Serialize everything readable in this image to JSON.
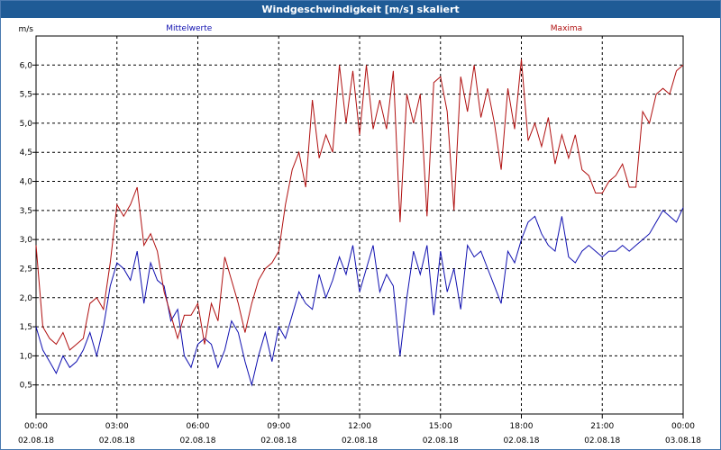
{
  "chart_data": {
    "type": "line",
    "title": "Windgeschwindigkeit [m/s] skaliert",
    "ylabel": "m/s",
    "ylim": [
      0,
      6.5
    ],
    "xlim": [
      0,
      24
    ],
    "grid": true,
    "y_ticks": [
      0.5,
      1.0,
      1.5,
      2.0,
      2.5,
      3.0,
      3.5,
      4.0,
      4.5,
      5.0,
      5.5,
      6.0
    ],
    "y_tick_labels": [
      "0,5",
      "1,0",
      "1,5",
      "2,0",
      "2,5",
      "3,0",
      "3,5",
      "4,0",
      "4,5",
      "5,0",
      "5,5",
      "6,0"
    ],
    "x_ticks": [
      0,
      3,
      6,
      9,
      12,
      15,
      18,
      21,
      24
    ],
    "x_tick_labels": [
      [
        "00:00",
        "02.08.18"
      ],
      [
        "03:00",
        "02.08.18"
      ],
      [
        "06:00",
        "02.08.18"
      ],
      [
        "09:00",
        "02.08.18"
      ],
      [
        "12:00",
        "02.08.18"
      ],
      [
        "15:00",
        "02.08.18"
      ],
      [
        "18:00",
        "02.08.18"
      ],
      [
        "21:00",
        "02.08.18"
      ],
      [
        "00:00",
        "03.08.18"
      ]
    ],
    "series": [
      {
        "name": "Mittelwerte",
        "color": "#1010b0",
        "x": [
          0,
          0.25,
          0.5,
          0.75,
          1,
          1.25,
          1.5,
          1.75,
          2,
          2.25,
          2.5,
          2.75,
          3,
          3.25,
          3.5,
          3.75,
          4,
          4.25,
          4.5,
          4.75,
          5,
          5.25,
          5.5,
          5.75,
          6,
          6.25,
          6.5,
          6.75,
          7,
          7.25,
          7.5,
          7.75,
          8,
          8.25,
          8.5,
          8.75,
          9,
          9.25,
          9.5,
          9.75,
          10,
          10.25,
          10.5,
          10.75,
          11,
          11.25,
          11.5,
          11.75,
          12,
          12.25,
          12.5,
          12.75,
          13,
          13.25,
          13.5,
          13.75,
          14,
          14.25,
          14.5,
          14.75,
          15,
          15.25,
          15.5,
          15.75,
          16,
          16.25,
          16.5,
          16.75,
          17,
          17.25,
          17.5,
          17.75,
          18,
          18.25,
          18.5,
          18.75,
          19,
          19.25,
          19.5,
          19.75,
          20,
          20.25,
          20.5,
          20.75,
          21,
          21.25,
          21.5,
          21.75,
          22,
          22.25,
          22.5,
          22.75,
          23,
          23.25,
          23.5,
          23.75,
          24
        ],
        "values": [
          1.5,
          1.1,
          0.9,
          0.7,
          1.0,
          0.8,
          0.9,
          1.1,
          1.4,
          1.0,
          1.5,
          2.2,
          2.6,
          2.5,
          2.3,
          2.8,
          1.9,
          2.6,
          2.3,
          2.2,
          1.6,
          1.8,
          1.0,
          0.8,
          1.2,
          1.3,
          1.2,
          0.8,
          1.1,
          1.6,
          1.4,
          0.9,
          0.5,
          1.0,
          1.4,
          0.9,
          1.5,
          1.3,
          1.7,
          2.1,
          1.9,
          1.8,
          2.4,
          2.0,
          2.3,
          2.7,
          2.4,
          2.9,
          2.1,
          2.5,
          2.9,
          2.1,
          2.4,
          2.2,
          1.0,
          2.0,
          2.8,
          2.4,
          2.9,
          1.7,
          2.8,
          2.1,
          2.5,
          1.8,
          2.9,
          2.7,
          2.8,
          2.5,
          2.2,
          1.9,
          2.8,
          2.6,
          3.0,
          3.3,
          3.4,
          3.1,
          2.9,
          2.8,
          3.4,
          2.7,
          2.6,
          2.8,
          2.9,
          2.8,
          2.7,
          2.8,
          2.8,
          2.9,
          2.8,
          2.9,
          3.0,
          3.1,
          3.3,
          3.5,
          3.4,
          3.3,
          3.55
        ]
      },
      {
        "name": "Maxima",
        "color": "#b01010",
        "x": [
          0,
          0.25,
          0.5,
          0.75,
          1,
          1.25,
          1.5,
          1.75,
          2,
          2.25,
          2.5,
          2.75,
          3,
          3.25,
          3.5,
          3.75,
          4,
          4.25,
          4.5,
          4.75,
          5,
          5.25,
          5.5,
          5.75,
          6,
          6.25,
          6.5,
          6.75,
          7,
          7.25,
          7.5,
          7.75,
          8,
          8.25,
          8.5,
          8.75,
          9,
          9.25,
          9.5,
          9.75,
          10,
          10.25,
          10.5,
          10.75,
          11,
          11.25,
          11.5,
          11.75,
          12,
          12.25,
          12.5,
          12.75,
          13,
          13.25,
          13.5,
          13.75,
          14,
          14.25,
          14.5,
          14.75,
          15,
          15.25,
          15.5,
          15.75,
          16,
          16.25,
          16.5,
          16.75,
          17,
          17.25,
          17.5,
          17.75,
          18,
          18.25,
          18.5,
          18.75,
          19,
          19.25,
          19.5,
          19.75,
          20,
          20.25,
          20.5,
          20.75,
          21,
          21.25,
          21.5,
          21.75,
          22,
          22.25,
          22.5,
          22.75,
          23,
          23.25,
          23.5,
          23.75,
          24
        ],
        "values": [
          2.9,
          1.5,
          1.3,
          1.2,
          1.4,
          1.1,
          1.2,
          1.3,
          1.9,
          2.0,
          1.8,
          2.6,
          3.6,
          3.4,
          3.6,
          3.9,
          2.9,
          3.1,
          2.8,
          2.1,
          1.7,
          1.3,
          1.7,
          1.7,
          1.9,
          1.2,
          1.9,
          1.6,
          2.7,
          2.3,
          1.9,
          1.4,
          1.9,
          2.3,
          2.5,
          2.6,
          2.8,
          3.6,
          4.2,
          4.5,
          3.9,
          5.4,
          4.4,
          4.8,
          4.5,
          6.0,
          5.0,
          5.9,
          4.8,
          6.0,
          4.9,
          5.4,
          4.9,
          5.9,
          3.3,
          5.5,
          5.0,
          5.5,
          3.4,
          5.7,
          5.8,
          5.2,
          3.5,
          5.8,
          5.2,
          6.0,
          5.1,
          5.6,
          5.0,
          4.2,
          5.6,
          4.9,
          6.1,
          4.7,
          5.0,
          4.6,
          5.1,
          4.3,
          4.8,
          4.4,
          4.8,
          4.2,
          4.1,
          3.8,
          3.8,
          4.0,
          4.1,
          4.3,
          3.9,
          3.9,
          5.2,
          5.0,
          5.5,
          5.6,
          5.5,
          5.9,
          6.0
        ]
      }
    ]
  }
}
